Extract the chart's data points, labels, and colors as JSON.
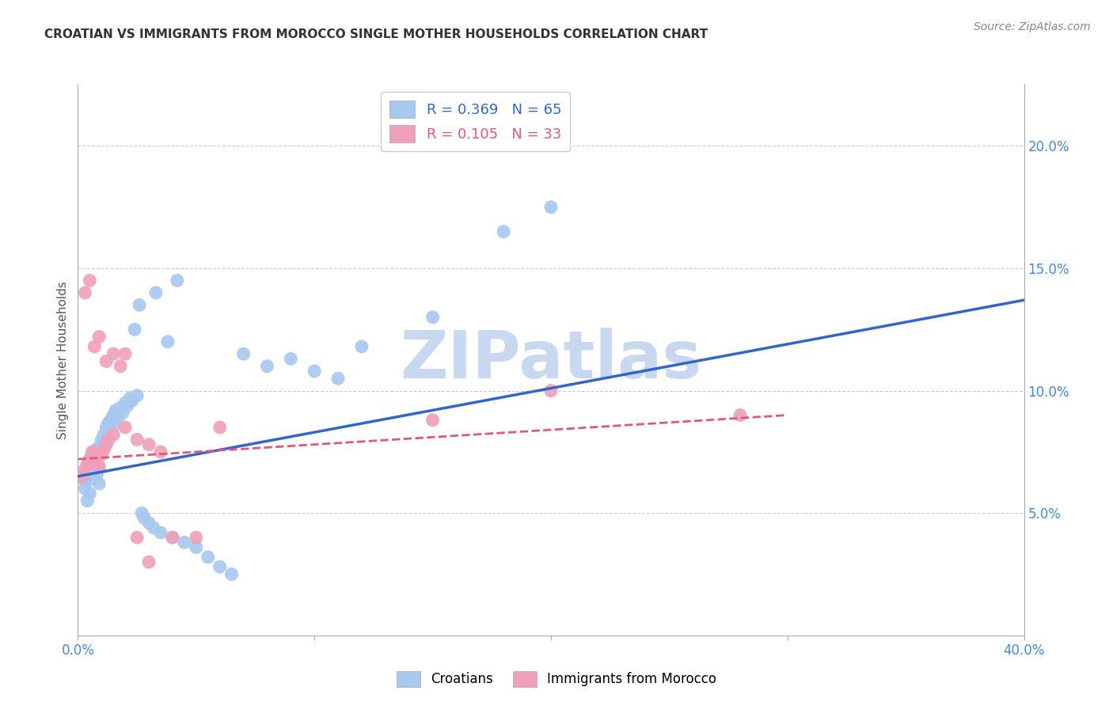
{
  "title": "CROATIAN VS IMMIGRANTS FROM MOROCCO SINGLE MOTHER HOUSEHOLDS CORRELATION CHART",
  "source": "Source: ZipAtlas.com",
  "ylabel": "Single Mother Households",
  "ytick_labels": [
    "5.0%",
    "10.0%",
    "15.0%",
    "20.0%"
  ],
  "ytick_values": [
    0.05,
    0.1,
    0.15,
    0.2
  ],
  "xlim": [
    0.0,
    0.4
  ],
  "ylim": [
    0.0,
    0.225
  ],
  "blue_R": 0.369,
  "blue_N": 65,
  "pink_R": 0.105,
  "pink_N": 33,
  "blue_color": "#A8C8F0",
  "pink_color": "#F0A0B8",
  "blue_line_color": "#3366CC",
  "pink_line_color": "#E05878",
  "watermark": "ZIPatlas",
  "watermark_color": "#C8D8F0",
  "background_color": "#FFFFFF",
  "blue_scatter_x": [
    0.002,
    0.003,
    0.003,
    0.004,
    0.004,
    0.005,
    0.005,
    0.005,
    0.006,
    0.006,
    0.006,
    0.007,
    0.007,
    0.007,
    0.008,
    0.008,
    0.008,
    0.009,
    0.009,
    0.009,
    0.01,
    0.01,
    0.011,
    0.011,
    0.012,
    0.012,
    0.013,
    0.013,
    0.014,
    0.015,
    0.015,
    0.016,
    0.017,
    0.018,
    0.019,
    0.02,
    0.021,
    0.022,
    0.023,
    0.025,
    0.027,
    0.028,
    0.03,
    0.032,
    0.035,
    0.04,
    0.045,
    0.05,
    0.055,
    0.06,
    0.065,
    0.07,
    0.08,
    0.09,
    0.1,
    0.11,
    0.12,
    0.15,
    0.18,
    0.2,
    0.024,
    0.026,
    0.033,
    0.038,
    0.042
  ],
  "blue_scatter_y": [
    0.065,
    0.063,
    0.06,
    0.068,
    0.055,
    0.072,
    0.058,
    0.07,
    0.067,
    0.073,
    0.064,
    0.069,
    0.075,
    0.071,
    0.076,
    0.074,
    0.066,
    0.077,
    0.068,
    0.062,
    0.08,
    0.078,
    0.082,
    0.079,
    0.085,
    0.083,
    0.087,
    0.084,
    0.088,
    0.09,
    0.086,
    0.092,
    0.089,
    0.093,
    0.091,
    0.095,
    0.094,
    0.097,
    0.096,
    0.098,
    0.05,
    0.048,
    0.046,
    0.044,
    0.042,
    0.04,
    0.038,
    0.036,
    0.032,
    0.028,
    0.025,
    0.115,
    0.11,
    0.113,
    0.108,
    0.105,
    0.118,
    0.13,
    0.165,
    0.175,
    0.125,
    0.135,
    0.14,
    0.12,
    0.145
  ],
  "pink_scatter_x": [
    0.002,
    0.003,
    0.004,
    0.005,
    0.006,
    0.007,
    0.008,
    0.009,
    0.01,
    0.011,
    0.012,
    0.013,
    0.015,
    0.018,
    0.02,
    0.025,
    0.03,
    0.035,
    0.04,
    0.05,
    0.06,
    0.003,
    0.005,
    0.007,
    0.009,
    0.012,
    0.015,
    0.02,
    0.025,
    0.03,
    0.15,
    0.2,
    0.28
  ],
  "pink_scatter_y": [
    0.065,
    0.068,
    0.07,
    0.072,
    0.075,
    0.073,
    0.071,
    0.069,
    0.074,
    0.076,
    0.078,
    0.08,
    0.082,
    0.11,
    0.115,
    0.08,
    0.078,
    0.075,
    0.04,
    0.04,
    0.085,
    0.14,
    0.145,
    0.118,
    0.122,
    0.112,
    0.115,
    0.085,
    0.04,
    0.03,
    0.088,
    0.1,
    0.09
  ],
  "blue_line_x": [
    0.0,
    0.4
  ],
  "blue_line_y_start": 0.065,
  "blue_line_y_end": 0.137,
  "pink_line_x": [
    0.0,
    0.3
  ],
  "pink_line_y_start": 0.072,
  "pink_line_y_end": 0.09
}
